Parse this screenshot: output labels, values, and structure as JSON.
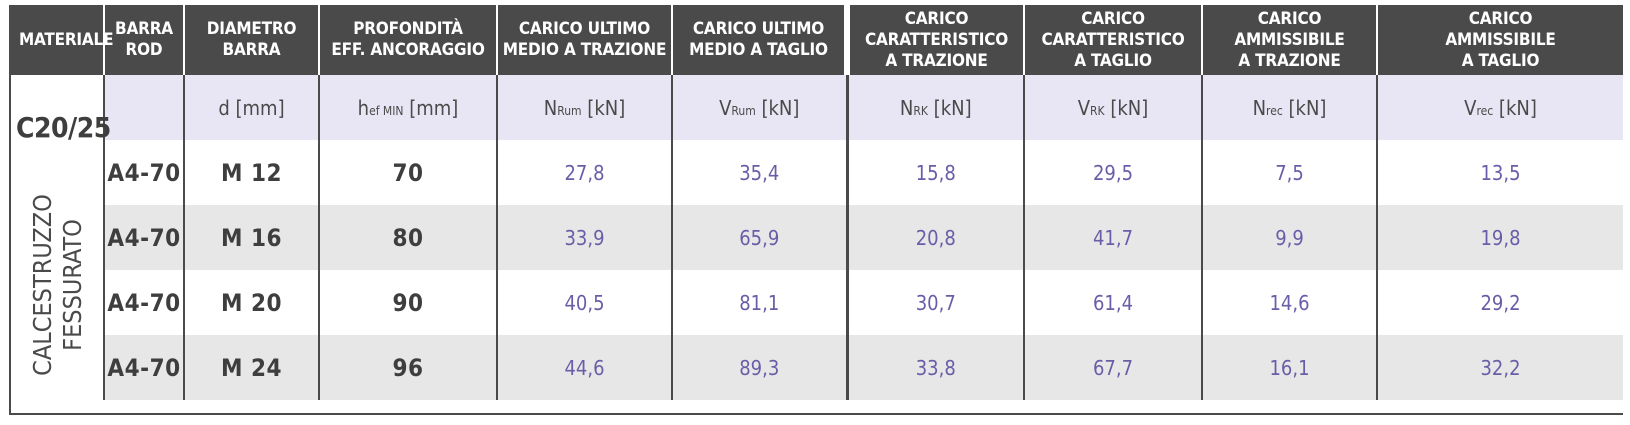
{
  "headers": [
    {
      "lines": [
        "MATERIALE"
      ]
    },
    {
      "lines": [
        "BARRA",
        "ROD"
      ]
    },
    {
      "lines": [
        "DIAMETRO",
        "BARRA"
      ]
    },
    {
      "lines": [
        "PROFONDITÀ",
        "EFF. ANCORAGGIO"
      ]
    },
    {
      "lines": [
        "CARICO ULTIMO",
        "MEDIO A TRAZIONE"
      ]
    },
    {
      "lines": [
        "CARICO ULTIMO",
        "MEDIO A TAGLIO"
      ]
    },
    {
      "lines": [
        "CARICO",
        "CARATTERISTICO",
        "A TRAZIONE"
      ]
    },
    {
      "lines": [
        "CARICO",
        "CARATTERISTICO",
        "A TAGLIO"
      ]
    },
    {
      "lines": [
        "CARICO",
        "AMMISSIBILE",
        "A TRAZIONE"
      ]
    },
    {
      "lines": [
        "CARICO",
        "AMMISSIBILE",
        "A TAGLIO"
      ]
    }
  ],
  "material": {
    "grade": "C20/25",
    "lines": [
      "CALCESTRUZZO",
      "FESSURATO"
    ]
  },
  "units": [
    {
      "sym": "",
      "sub": "",
      "unit": ""
    },
    {
      "sym": "d",
      "sub": "",
      "unit": " [mm]"
    },
    {
      "sym": "h",
      "sub": "ef MIN",
      "unit": " [mm]"
    },
    {
      "sym": "N",
      "sub": "Rum",
      "unit": " [kN]"
    },
    {
      "sym": "V",
      "sub": "Rum",
      "unit": " [kN]"
    },
    {
      "sym": "N",
      "sub": "RK",
      "unit": " [kN]"
    },
    {
      "sym": "V",
      "sub": "RK",
      "unit": " [kN]"
    },
    {
      "sym": "N",
      "sub": "rec",
      "unit": " [kN]"
    },
    {
      "sym": "V",
      "sub": "rec",
      "unit": " [kN]"
    }
  ],
  "rows": [
    {
      "rod": "A4-70",
      "diameter": "M 12",
      "depth": "70",
      "values": [
        "27,8",
        "35,4",
        "15,8",
        "29,5",
        "7,5",
        "13,5"
      ]
    },
    {
      "rod": "A4-70",
      "diameter": "M 16",
      "depth": "80",
      "values": [
        "33,9",
        "65,9",
        "20,8",
        "41,7",
        "9,9",
        "19,8"
      ]
    },
    {
      "rod": "A4-70",
      "diameter": "M 20",
      "depth": "90",
      "values": [
        "40,5",
        "81,1",
        "30,7",
        "61,4",
        "14,6",
        "29,2"
      ]
    },
    {
      "rod": "A4-70",
      "diameter": "M 24",
      "depth": "96",
      "values": [
        "44,6",
        "89,3",
        "33,8",
        "67,7",
        "16,1",
        "32,2"
      ]
    }
  ]
}
